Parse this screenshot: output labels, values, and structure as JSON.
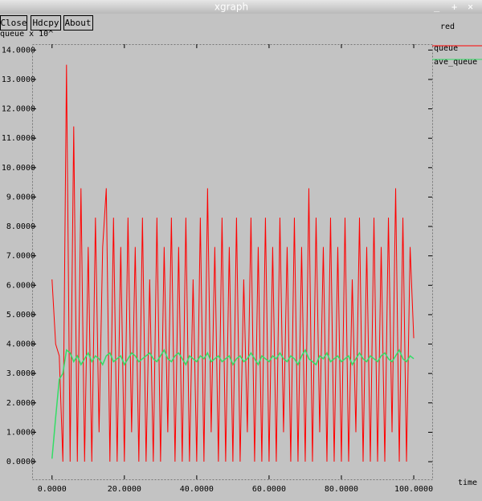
{
  "window": {
    "title": "xgraph",
    "buttons": [
      "Close",
      "Hdcpy",
      "About"
    ],
    "side_label": "red"
  },
  "chart_data": {
    "type": "line",
    "ylabel": "queue x 10^",
    "xlabel": "time",
    "x": [
      0,
      1,
      2,
      3,
      4,
      5,
      6,
      7,
      8,
      9,
      10,
      11,
      12,
      13,
      14,
      15,
      16,
      17,
      18,
      19,
      20,
      21,
      22,
      23,
      24,
      25,
      26,
      27,
      28,
      29,
      30,
      31,
      32,
      33,
      34,
      35,
      36,
      37,
      38,
      39,
      40,
      41,
      42,
      43,
      44,
      45,
      46,
      47,
      48,
      49,
      50,
      51,
      52,
      53,
      54,
      55,
      56,
      57,
      58,
      59,
      60,
      61,
      62,
      63,
      64,
      65,
      66,
      67,
      68,
      69,
      70,
      71,
      72,
      73,
      74,
      75,
      76,
      77,
      78,
      79,
      80,
      81,
      82,
      83,
      84,
      85,
      86,
      87,
      88,
      89,
      90,
      91,
      92,
      93,
      94,
      95,
      96,
      97,
      98,
      99,
      100
    ],
    "series": [
      {
        "name": "queue",
        "color": "#ff0000",
        "values": [
          6.2,
          4.0,
          3.6,
          0,
          13.5,
          0,
          11.4,
          0,
          9.3,
          0,
          7.3,
          0,
          8.3,
          1,
          7.3,
          9.3,
          0,
          8.3,
          0,
          7.3,
          0,
          8.3,
          1,
          7.3,
          0,
          8.3,
          0,
          6.2,
          0,
          8.3,
          0,
          7.3,
          1,
          8.3,
          0,
          7.3,
          0,
          8.3,
          0,
          6.2,
          0,
          8.3,
          0,
          9.3,
          1,
          7.3,
          0,
          8.3,
          0,
          7.3,
          0,
          8.3,
          0,
          6.2,
          1,
          8.3,
          0,
          7.3,
          0,
          8.3,
          0,
          7.3,
          0,
          8.3,
          1,
          7.3,
          0,
          8.3,
          0,
          7.3,
          0,
          9.3,
          0,
          8.3,
          1,
          7.3,
          0,
          8.3,
          0,
          7.3,
          0,
          8.3,
          0,
          6.2,
          1,
          8.3,
          0,
          7.3,
          0,
          8.3,
          0,
          7.3,
          0,
          8.3,
          1,
          9.3,
          0,
          8.3,
          0,
          7.3,
          4.2
        ]
      },
      {
        "name": "ave_queue",
        "color": "#33dd66",
        "values": [
          0.1,
          1.5,
          2.8,
          3.0,
          3.8,
          3.7,
          3.4,
          3.6,
          3.3,
          3.5,
          3.7,
          3.4,
          3.6,
          3.5,
          3.3,
          3.6,
          3.7,
          3.4,
          3.5,
          3.6,
          3.3,
          3.5,
          3.7,
          3.6,
          3.4,
          3.5,
          3.6,
          3.7,
          3.5,
          3.4,
          3.6,
          3.8,
          3.5,
          3.4,
          3.6,
          3.7,
          3.5,
          3.3,
          3.6,
          3.5,
          3.4,
          3.6,
          3.5,
          3.7,
          3.4,
          3.5,
          3.6,
          3.4,
          3.5,
          3.6,
          3.3,
          3.5,
          3.6,
          3.4,
          3.5,
          3.7,
          3.5,
          3.3,
          3.6,
          3.5,
          3.4,
          3.6,
          3.5,
          3.7,
          3.5,
          3.4,
          3.6,
          3.5,
          3.3,
          3.6,
          3.8,
          3.5,
          3.4,
          3.3,
          3.6,
          3.5,
          3.7,
          3.4,
          3.5,
          3.6,
          3.4,
          3.5,
          3.6,
          3.3,
          3.5,
          3.7,
          3.5,
          3.4,
          3.6,
          3.5,
          3.4,
          3.6,
          3.7,
          3.5,
          3.4,
          3.6,
          3.8,
          3.5,
          3.4,
          3.6,
          3.5
        ]
      }
    ],
    "xlim": [
      -5.5,
      105.1
    ],
    "ylim": [
      -0.6,
      14.2
    ],
    "xticks": [
      {
        "value": 0,
        "label": "0.0000"
      },
      {
        "value": 20,
        "label": "20.0000"
      },
      {
        "value": 40,
        "label": "40.0000"
      },
      {
        "value": 60,
        "label": "60.0000"
      },
      {
        "value": 80,
        "label": "80.0000"
      },
      {
        "value": 100,
        "label": "100.0000"
      }
    ],
    "yticks": [
      {
        "value": 0,
        "label": "0.0000"
      },
      {
        "value": 1,
        "label": "1.0000"
      },
      {
        "value": 2,
        "label": "2.0000"
      },
      {
        "value": 3,
        "label": "3.0000"
      },
      {
        "value": 4,
        "label": "4.0000"
      },
      {
        "value": 5,
        "label": "5.0000"
      },
      {
        "value": 6,
        "label": "6.0000"
      },
      {
        "value": 7,
        "label": "7.0000"
      },
      {
        "value": 8,
        "label": "8.0000"
      },
      {
        "value": 9,
        "label": "9.0000"
      },
      {
        "value": 10,
        "label": "10.0000"
      },
      {
        "value": 11,
        "label": "11.0000"
      },
      {
        "value": 12,
        "label": "12.0000"
      },
      {
        "value": 13,
        "label": "13.0000"
      },
      {
        "value": 14,
        "label": "14.0000"
      }
    ]
  }
}
